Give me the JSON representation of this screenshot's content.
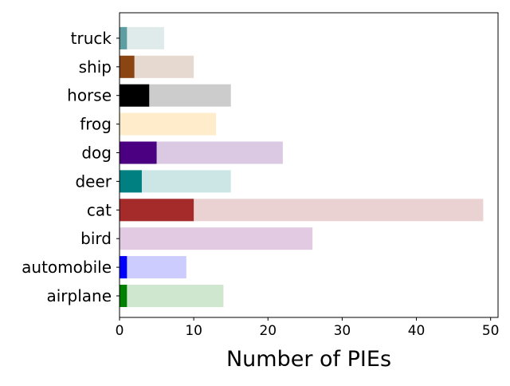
{
  "chart_data": {
    "type": "bar",
    "orientation": "horizontal",
    "stacked": "overlay",
    "title": "",
    "xlabel": "Number of PIEs",
    "ylabel": "",
    "xlim": [
      0,
      51
    ],
    "x_ticks": [
      "0",
      "10",
      "20",
      "30",
      "40",
      "50"
    ],
    "grid": false,
    "legend": "none",
    "categories": [
      "airplane",
      "automobile",
      "bird",
      "cat",
      "deer",
      "dog",
      "frog",
      "horse",
      "ship",
      "truck"
    ],
    "series": [
      {
        "values": [
          14,
          9,
          26,
          49,
          15,
          22,
          13,
          15,
          10,
          6
        ],
        "colors": [
          "#cfe6cf",
          "#ccccff",
          "#e3cae3",
          "#ebd2d2",
          "#cce6e6",
          "#dbc9e3",
          "#ffecca",
          "#cccccc",
          "#e5d9d0",
          "#dfebeb"
        ]
      },
      {
        "values": [
          1,
          1,
          0,
          10,
          3,
          5,
          0,
          4,
          2,
          1
        ],
        "colors": [
          "#008000",
          "#0000ff",
          "#800080",
          "#a52a2a",
          "#008080",
          "#4b0082",
          "#ffa500",
          "#000000",
          "#8b4513",
          "#5f9ea0"
        ]
      }
    ]
  }
}
